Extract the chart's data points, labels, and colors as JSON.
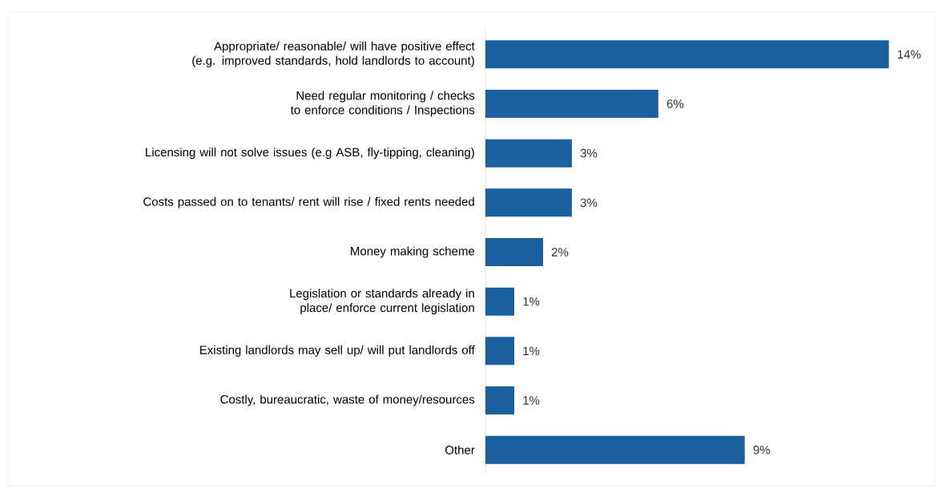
{
  "chart_data": {
    "type": "bar",
    "orientation": "horizontal",
    "color": "#1a5f9e",
    "categories": [
      "Appropriate/ reasonable/ will have positive effect (e.g. improved standards, hold landlords to account)",
      "Need regular monitoring / checks to enforce conditions / Inspections",
      "Licensing will not solve issues (e.g ASB, fly-tipping, cleaning)",
      "Costs passed on to tenants/ rent will rise / fixed rents needed",
      "Money making scheme",
      "Legislation or standards already in place/ enforce current legislation",
      "Existing landlords may sell up/ will put  landlords off",
      "Costly, bureaucratic, waste of money/resources",
      "Other"
    ],
    "values": [
      14,
      6,
      3,
      3,
      2,
      1,
      1,
      1,
      9
    ],
    "value_labels": [
      "14%",
      "6%",
      "3%",
      "3%",
      "2%",
      "1%",
      "1%",
      "1%",
      "9%"
    ],
    "tick_labels": "y"
  }
}
